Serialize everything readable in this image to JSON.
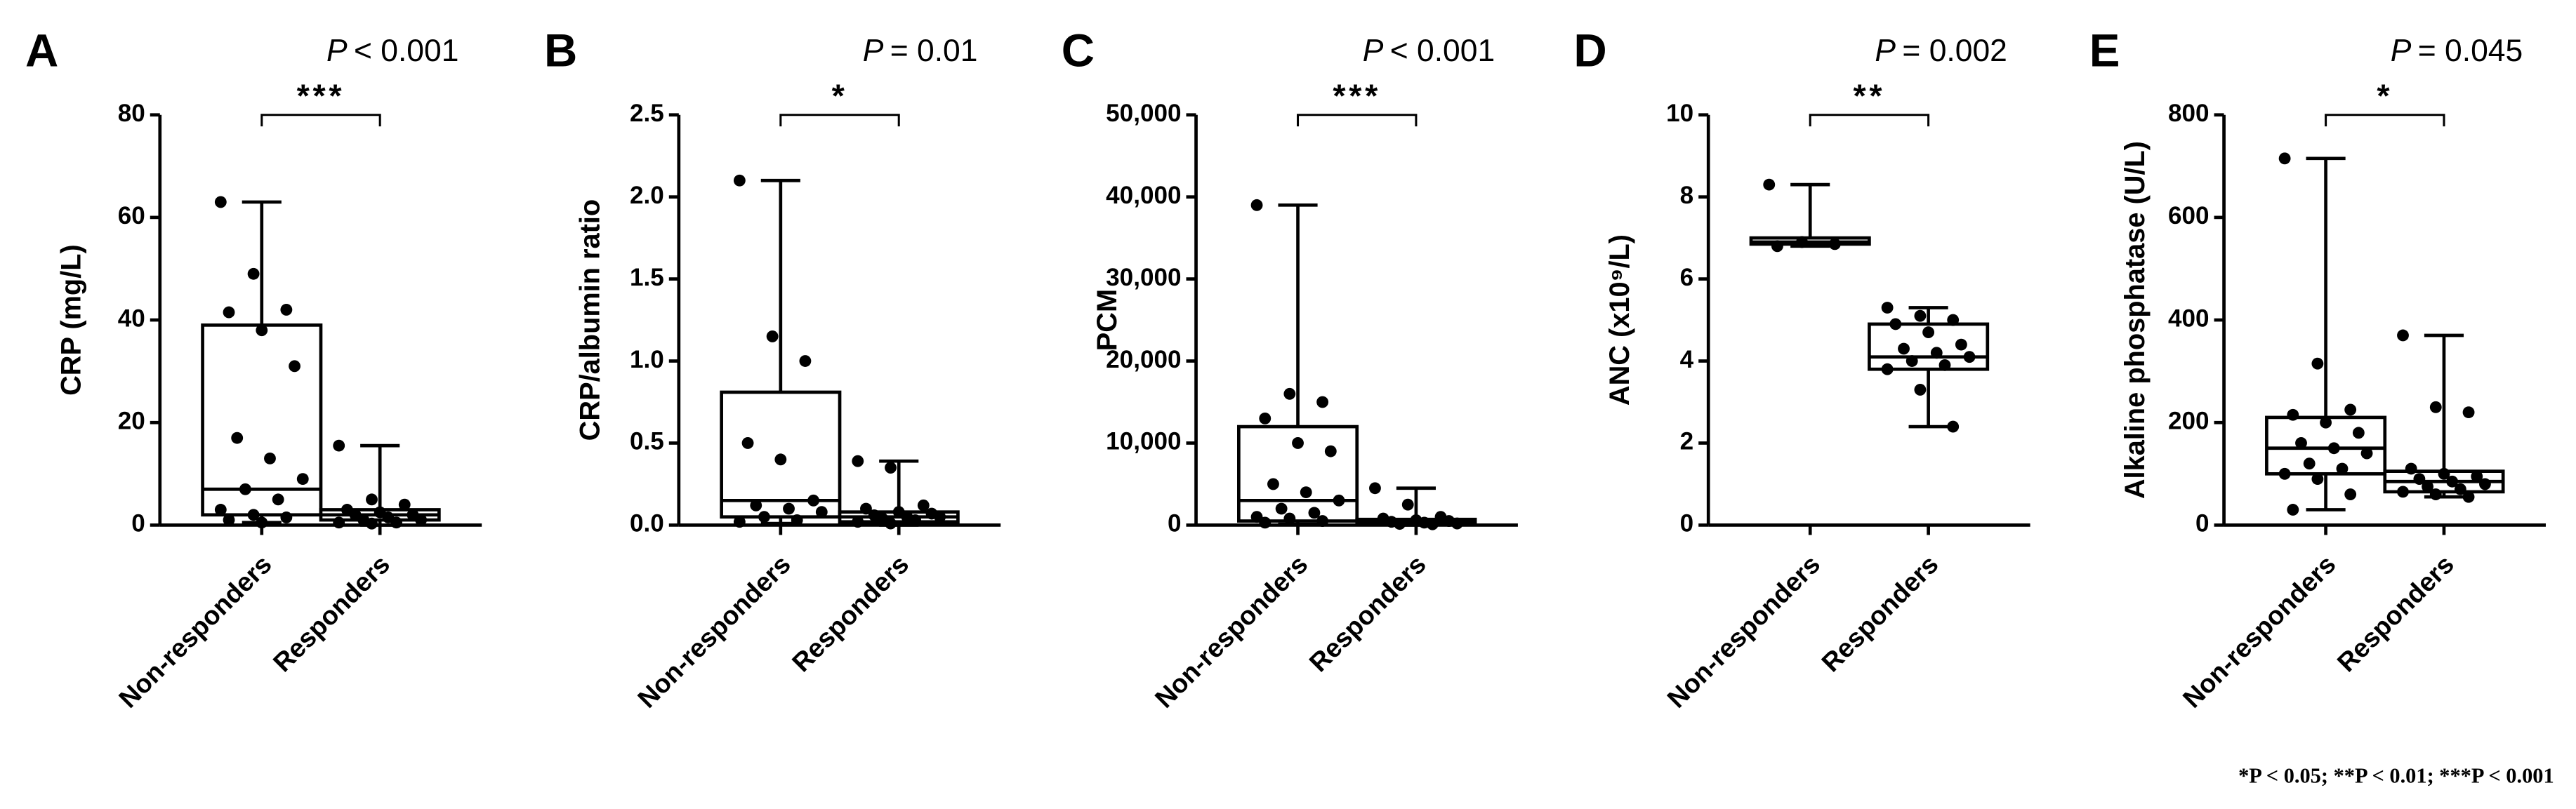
{
  "chart_data": [
    {
      "type": "box",
      "panel": "A",
      "p_symbol": "P",
      "p_value": "< 0.001",
      "significance": "***",
      "ylabel": "CRP (mg/L)",
      "categories": [
        "Non-responders",
        "Responders"
      ],
      "ylim": [
        0,
        80
      ],
      "yticks": [
        0,
        20,
        40,
        60,
        80
      ],
      "boxes": [
        {
          "min": 0.5,
          "q1": 2,
          "median": 7,
          "q3": 39,
          "max": 63,
          "points": [
            63,
            49,
            42,
            41.5,
            38,
            31,
            17,
            13,
            9,
            7,
            5,
            3,
            2,
            1.5,
            1,
            0.5
          ]
        },
        {
          "min": 0,
          "q1": 1,
          "median": 2,
          "q3": 3,
          "max": 15.5,
          "points": [
            15.5,
            5,
            4,
            3,
            2.5,
            2,
            2,
            1.5,
            1,
            1,
            0.5,
            0.5,
            0.3
          ]
        }
      ]
    },
    {
      "type": "box",
      "panel": "B",
      "p_symbol": "P",
      "p_value": "= 0.01",
      "significance": "*",
      "ylabel": "CRP/albumin ratio",
      "categories": [
        "Non-responders",
        "Responders"
      ],
      "ylim": [
        0,
        2.5
      ],
      "yticks": [
        {
          "value": 0,
          "label": "0.0"
        },
        0.5,
        {
          "value": 1,
          "label": "1.0"
        },
        1.5,
        {
          "value": 2,
          "label": "2.0"
        },
        2.5
      ],
      "boxes": [
        {
          "min": 0.01,
          "q1": 0.05,
          "median": 0.15,
          "q3": 0.81,
          "max": 2.1,
          "points": [
            2.1,
            1.15,
            1.0,
            0.5,
            0.4,
            0.15,
            0.12,
            0.1,
            0.08,
            0.05,
            0.03,
            0.02
          ]
        },
        {
          "min": 0,
          "q1": 0.02,
          "median": 0.05,
          "q3": 0.08,
          "max": 0.39,
          "points": [
            0.39,
            0.35,
            0.12,
            0.1,
            0.08,
            0.07,
            0.06,
            0.05,
            0.05,
            0.04,
            0.03,
            0.02,
            0.01
          ]
        }
      ]
    },
    {
      "type": "box",
      "panel": "C",
      "p_symbol": "P",
      "p_value": "< 0.001",
      "significance": "***",
      "ylabel": "PCM",
      "categories": [
        "Non-responders",
        "Responders"
      ],
      "ylim": [
        0,
        50000
      ],
      "yticks": [
        0,
        {
          "value": 10000,
          "label": "10,000"
        },
        {
          "value": 20000,
          "label": "20,000"
        },
        {
          "value": 30000,
          "label": "30,000"
        },
        {
          "value": 40000,
          "label": "40,000"
        },
        {
          "value": 50000,
          "label": "50,000"
        }
      ],
      "boxes": [
        {
          "min": 100,
          "q1": 500,
          "median": 3000,
          "q3": 12000,
          "max": 39000,
          "points": [
            39000,
            16000,
            15000,
            13000,
            10000,
            9000,
            5000,
            4000,
            3000,
            2000,
            1500,
            1000,
            800,
            500,
            300
          ]
        },
        {
          "min": 0,
          "q1": 100,
          "median": 300,
          "q3": 700,
          "max": 4500,
          "points": [
            4500,
            2500,
            1000,
            800,
            600,
            500,
            400,
            300,
            200,
            150,
            100
          ]
        }
      ]
    },
    {
      "type": "box",
      "panel": "D",
      "p_symbol": "P",
      "p_value": "= 0.002",
      "significance": "**",
      "ylabel": "ANC (x10⁹/L)",
      "categories": [
        "Non-responders",
        "Responders"
      ],
      "ylim": [
        0,
        10
      ],
      "yticks": [
        0,
        2,
        4,
        6,
        8,
        10
      ],
      "boxes": [
        {
          "min": 6.8,
          "q1": 6.85,
          "median": 6.9,
          "q3": 7.0,
          "max": 8.3,
          "points": [
            8.3,
            6.9,
            6.85,
            6.8
          ]
        },
        {
          "min": 2.4,
          "q1": 3.8,
          "median": 4.1,
          "q3": 4.9,
          "max": 5.3,
          "points": [
            5.3,
            5.1,
            5.0,
            4.9,
            4.7,
            4.4,
            4.3,
            4.2,
            4.1,
            4.0,
            3.9,
            3.8,
            3.3,
            2.4
          ]
        }
      ]
    },
    {
      "type": "box",
      "panel": "E",
      "p_symbol": "P",
      "p_value": "= 0.045",
      "significance": "*",
      "ylabel": "Alkaline phosphatase (U/L)",
      "categories": [
        "Non-responders",
        "Responders"
      ],
      "ylim": [
        0,
        800
      ],
      "yticks": [
        0,
        200,
        400,
        600,
        800
      ],
      "boxes": [
        {
          "min": 30,
          "q1": 100,
          "median": 150,
          "q3": 210,
          "max": 715,
          "points": [
            715,
            315,
            225,
            215,
            200,
            180,
            160,
            150,
            140,
            120,
            110,
            100,
            90,
            60,
            30
          ]
        },
        {
          "min": 55,
          "q1": 65,
          "median": 85,
          "q3": 105,
          "max": 370,
          "points": [
            370,
            230,
            220,
            110,
            100,
            95,
            90,
            85,
            80,
            75,
            70,
            65,
            60,
            55
          ]
        }
      ]
    }
  ],
  "footnote": "*P < 0.05; **P < 0.01; ***P < 0.001"
}
